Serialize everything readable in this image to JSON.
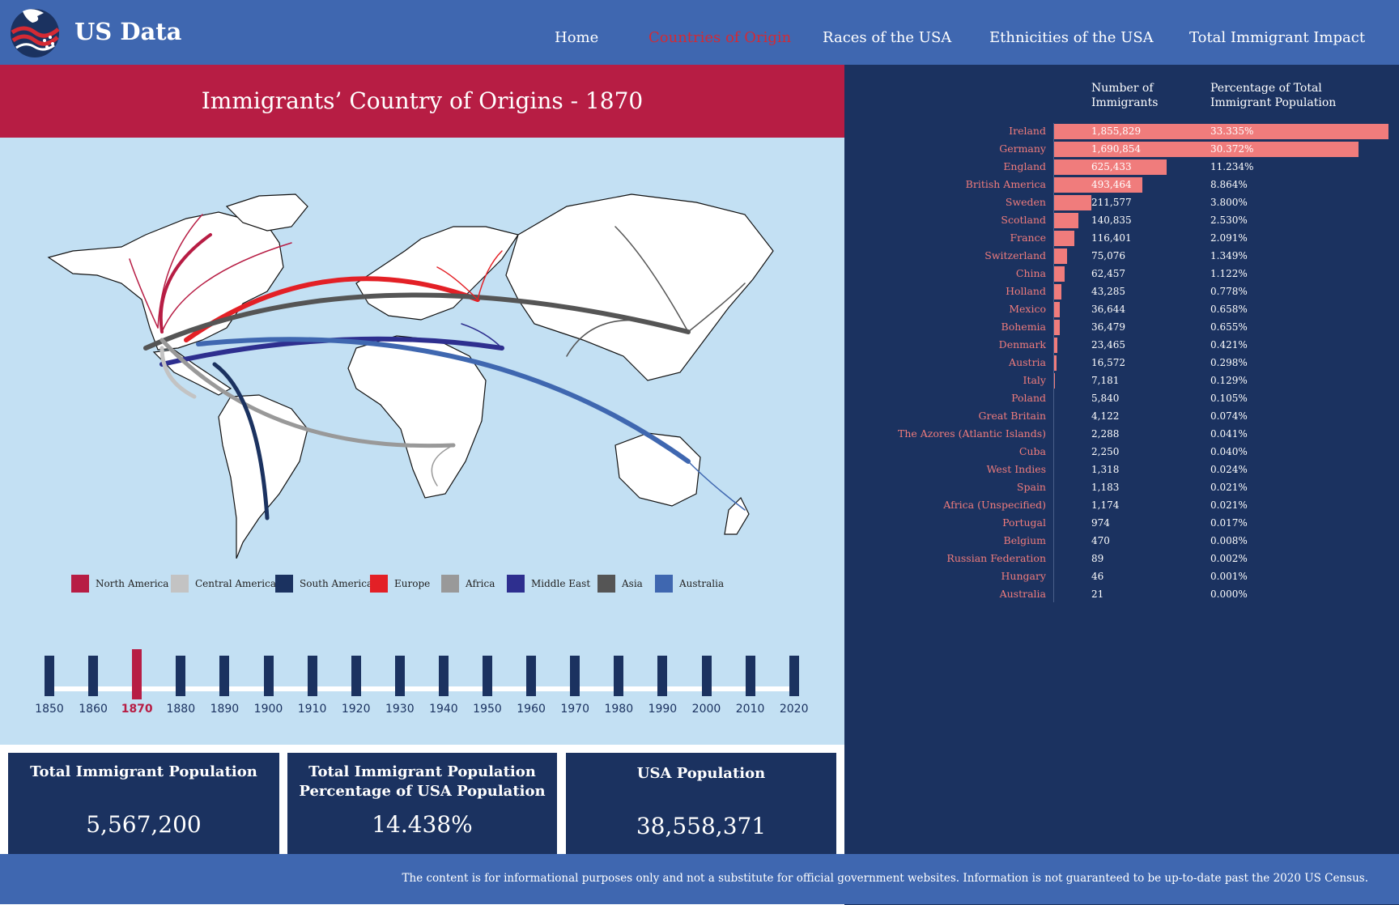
{
  "nav": {
    "brand": "US Data",
    "items": [
      {
        "label": "Home",
        "active": false
      },
      {
        "label": "Countries of Origin",
        "active": true
      },
      {
        "label": "Races of the USA",
        "active": false
      },
      {
        "label": "Ethnicities of the USA",
        "active": false
      },
      {
        "label": "Total Immigrant Impact",
        "active": false
      }
    ]
  },
  "main": {
    "title": "Immigrants’ Country of Origins - 1870",
    "legend": [
      {
        "label": "North America",
        "color": "#b71d44"
      },
      {
        "label": "Central America",
        "color": "#c3c3c3"
      },
      {
        "label": "South America",
        "color": "#1b3260"
      },
      {
        "label": "Europe",
        "color": "#e32026"
      },
      {
        "label": "Africa",
        "color": "#999999"
      },
      {
        "label": "Middle East",
        "color": "#2e2f8f"
      },
      {
        "label": "Asia",
        "color": "#555555"
      },
      {
        "label": "Australia",
        "color": "#3f67b0"
      }
    ],
    "timeline": {
      "selected": "1870",
      "years": [
        "1850",
        "1860",
        "1870",
        "1880",
        "1890",
        "1900",
        "1910",
        "1920",
        "1930",
        "1940",
        "1950",
        "1960",
        "1970",
        "1980",
        "1990",
        "2000",
        "2010",
        "2020"
      ]
    }
  },
  "cards": {
    "total_immigrants_label": "Total Immigrant Population",
    "total_immigrants_value": "5,567,200",
    "percentage_label_line1": "Total Immigrant Population",
    "percentage_label_line2": "Percentage of USA Population",
    "percentage_value": "14.438%",
    "usa_population_label": "USA Population",
    "usa_population_value": "38,558,371"
  },
  "table": {
    "col_number_line1": "Number of",
    "col_number_line2": "Immigrants",
    "col_pct_line1": "Percentage of Total",
    "col_pct_line2": "Immigrant Population",
    "rows": [
      {
        "country": "Ireland",
        "number": "1,855,829",
        "percent": "33.335%",
        "value": 1855829
      },
      {
        "country": "Germany",
        "number": "1,690,854",
        "percent": "30.372%",
        "value": 1690854
      },
      {
        "country": "England",
        "number": "625,433",
        "percent": "11.234%",
        "value": 625433
      },
      {
        "country": "British America",
        "number": "493,464",
        "percent": "8.864%",
        "value": 493464
      },
      {
        "country": "Sweden",
        "number": "211,577",
        "percent": "3.800%",
        "value": 211577
      },
      {
        "country": "Scotland",
        "number": "140,835",
        "percent": "2.530%",
        "value": 140835
      },
      {
        "country": "France",
        "number": "116,401",
        "percent": "2.091%",
        "value": 116401
      },
      {
        "country": "Switzerland",
        "number": "75,076",
        "percent": "1.349%",
        "value": 75076
      },
      {
        "country": "China",
        "number": "62,457",
        "percent": "1.122%",
        "value": 62457
      },
      {
        "country": "Holland",
        "number": "43,285",
        "percent": "0.778%",
        "value": 43285
      },
      {
        "country": "Mexico",
        "number": "36,644",
        "percent": "0.658%",
        "value": 36644
      },
      {
        "country": "Bohemia",
        "number": "36,479",
        "percent": "0.655%",
        "value": 36479
      },
      {
        "country": "Denmark",
        "number": "23,465",
        "percent": "0.421%",
        "value": 23465
      },
      {
        "country": "Austria",
        "number": "16,572",
        "percent": "0.298%",
        "value": 16572
      },
      {
        "country": "Italy",
        "number": "7,181",
        "percent": "0.129%",
        "value": 7181
      },
      {
        "country": "Poland",
        "number": "5,840",
        "percent": "0.105%",
        "value": 5840
      },
      {
        "country": "Great Britain",
        "number": "4,122",
        "percent": "0.074%",
        "value": 4122
      },
      {
        "country": "The Azores (Atlantic Islands)",
        "number": "2,288",
        "percent": "0.041%",
        "value": 2288
      },
      {
        "country": "Cuba",
        "number": "2,250",
        "percent": "0.040%",
        "value": 2250
      },
      {
        "country": "West Indies",
        "number": "1,318",
        "percent": "0.024%",
        "value": 1318
      },
      {
        "country": "Spain",
        "number": "1,183",
        "percent": "0.021%",
        "value": 1183
      },
      {
        "country": "Africa (Unspecified)",
        "number": "1,174",
        "percent": "0.021%",
        "value": 1174
      },
      {
        "country": "Portugal",
        "number": "974",
        "percent": "0.017%",
        "value": 974
      },
      {
        "country": "Belgium",
        "number": "470",
        "percent": "0.008%",
        "value": 470
      },
      {
        "country": "Russian Federation",
        "number": "89",
        "percent": "0.002%",
        "value": 89
      },
      {
        "country": "Hungary",
        "number": "46",
        "percent": "0.001%",
        "value": 46
      },
      {
        "country": "Australia",
        "number": "21",
        "percent": "0.000%",
        "value": 21
      }
    ]
  },
  "footer": {
    "text": "The content is for informational purposes only and not a substitute for official government websites. Information is not guaranteed to be up-to-date past the 2020 US Census."
  }
}
